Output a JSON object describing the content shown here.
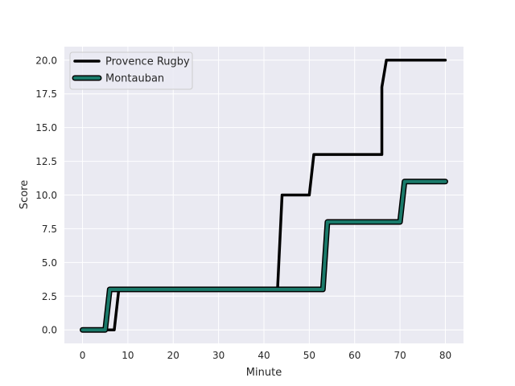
{
  "chart_data": {
    "type": "line",
    "xlabel": "Minute",
    "ylabel": "Score",
    "xlim": [
      -4,
      84
    ],
    "ylim": [
      -1,
      21
    ],
    "xticks": [
      0,
      10,
      20,
      30,
      40,
      50,
      60,
      70,
      80
    ],
    "yticks": [
      0.0,
      2.5,
      5.0,
      7.5,
      10.0,
      12.5,
      15.0,
      17.5,
      20.0
    ],
    "xtick_labels": [
      "0",
      "10",
      "20",
      "30",
      "40",
      "50",
      "60",
      "70",
      "80"
    ],
    "ytick_labels": [
      "0.0",
      "2.5",
      "5.0",
      "7.5",
      "10.0",
      "12.5",
      "15.0",
      "17.5",
      "20.0"
    ],
    "grid": true,
    "legend_position": "top-left",
    "background": "#eaeaf2",
    "series": [
      {
        "name": "Provence Rugby",
        "color": "#000000",
        "x": [
          0,
          7,
          8,
          43,
          44,
          50,
          51,
          66,
          66,
          67,
          80
        ],
        "y": [
          0,
          0,
          3,
          3,
          10,
          10,
          13,
          13,
          18,
          20,
          20
        ]
      },
      {
        "name": "Montauban",
        "color": "#1a7a6a",
        "outline": "#000000",
        "x": [
          0,
          5,
          6,
          53,
          54,
          70,
          71,
          80
        ],
        "y": [
          0,
          0,
          3,
          3,
          8,
          8,
          11,
          11
        ]
      }
    ]
  }
}
